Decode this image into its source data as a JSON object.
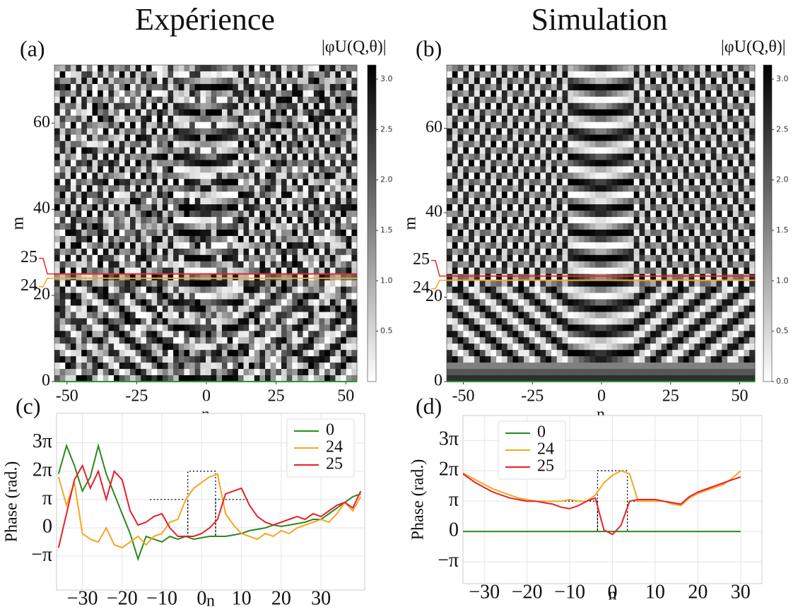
{
  "chart_data": [
    {
      "type": "heatmap",
      "title": "Expérience",
      "panel": "(a)",
      "xlabel": "n",
      "ylabel": "m",
      "colorbar_label": "|φU(Q,θ)|",
      "xlim": [
        -54.5,
        54
      ],
      "xticks": [
        -50,
        -25,
        0,
        25,
        50
      ],
      "ylim": [
        0,
        73.5
      ],
      "yticks": [
        0,
        20,
        40,
        60
      ],
      "clim": [
        0,
        3.14
      ],
      "cticks": [
        {
          "value": 0.5,
          "label": "0.5"
        },
        {
          "value": 1,
          "label": "1.0"
        },
        {
          "value": 1.5,
          "label": "1.5"
        },
        {
          "value": 2,
          "label": "2.0"
        },
        {
          "value": 2.5,
          "label": "2.5"
        },
        {
          "value": 3,
          "label": "3.0"
        }
      ],
      "cmap": [
        "#ffffff",
        "#000000"
      ],
      "noisy": true,
      "cuts": [
        {
          "value": 25,
          "color": "#e8282a"
        },
        {
          "value": 24,
          "color": "#f5a623"
        },
        {
          "value": 0,
          "color": "#2a9a2a"
        }
      ]
    },
    {
      "type": "heatmap",
      "title": "Simulation",
      "panel": "(b)",
      "xlabel": "n",
      "ylabel": "m",
      "colorbar_label": "|φU(Q,θ)|",
      "xlim": [
        -56,
        55.5
      ],
      "xticks": [
        -50,
        -25,
        0,
        25,
        50
      ],
      "ylim": [
        0,
        75
      ],
      "yticks": [
        0,
        20,
        40,
        60
      ],
      "clim": [
        0,
        3.14
      ],
      "cticks": [
        {
          "value": 0,
          "label": "0.0"
        },
        {
          "value": 0.5,
          "label": "0.5"
        },
        {
          "value": 1,
          "label": "1.0"
        },
        {
          "value": 1.5,
          "label": "1.5"
        },
        {
          "value": 2,
          "label": "2.0"
        },
        {
          "value": 2.5,
          "label": "2.5"
        },
        {
          "value": 3,
          "label": "3.0"
        }
      ],
      "cmap": [
        "#ffffff",
        "#000000"
      ],
      "noisy": false,
      "cuts": [
        {
          "value": 25,
          "color": "#e8282a"
        },
        {
          "value": 24,
          "color": "#f5a623"
        },
        {
          "value": 0,
          "color": "#2a9a2a"
        }
      ]
    },
    {
      "type": "line",
      "panel": "(c)",
      "xlabel": "n",
      "ylabel": "Phase (rad.)",
      "legend": "upper right",
      "grid": true,
      "xlim": [
        -36.5,
        41
      ],
      "xticks": [
        {
          "value": -30,
          "label": "−30"
        },
        {
          "value": -20,
          "label": "−20"
        },
        {
          "value": -10,
          "label": "−10"
        },
        0,
        10,
        20,
        30
      ],
      "ylim": [
        -6.9,
        12.7
      ],
      "yticks": [
        {
          "value": -3.1416,
          "label": "−π"
        },
        0,
        {
          "value": 3.1416,
          "label": "π"
        },
        {
          "value": 6.2832,
          "label": "2π"
        },
        {
          "value": 9.4248,
          "label": "3π"
        }
      ],
      "x": [
        -36,
        -34,
        -32,
        -30,
        -28,
        -26,
        -24,
        -22,
        -20,
        -18,
        -16,
        -14,
        -12,
        -10,
        -8,
        -6,
        -4,
        -2,
        0,
        2,
        4,
        6,
        8,
        10,
        12,
        14,
        16,
        18,
        20,
        22,
        24,
        26,
        28,
        30,
        32,
        34,
        36,
        38,
        40
      ],
      "series": [
        {
          "name": "0",
          "color": "#2a8a1e",
          "values": [
            5.97,
            9.11,
            6.91,
            4.08,
            5.65,
            9.11,
            5.97,
            3.77,
            1.57,
            -0.63,
            -3.46,
            -0.94,
            -1.26,
            -1.57,
            -0.94,
            -1.26,
            -0.94,
            -1.26,
            -1.1,
            -0.94,
            -0.94,
            -0.94,
            -0.79,
            -0.63,
            -0.31,
            -0.16,
            0,
            0.31,
            0.16,
            0.31,
            0.47,
            0.63,
            0.94,
            0.94,
            1.57,
            2.2,
            2.83,
            3.46,
            3.77
          ]
        },
        {
          "name": "24",
          "color": "#f5a623",
          "values": [
            5.65,
            2.51,
            5.03,
            -0.63,
            -1.26,
            -1.57,
            0,
            -1.88,
            -2.2,
            -1.57,
            -0.94,
            -1.88,
            -0.94,
            -0.63,
            0.63,
            0.94,
            3.14,
            4.4,
            5.03,
            5.65,
            5.97,
            1.57,
            0.31,
            -0.63,
            -0.94,
            -1.26,
            -0.63,
            -0.94,
            -0.31,
            -0.63,
            0,
            0.31,
            0.63,
            0.94,
            0.63,
            1.57,
            2.83,
            1.88,
            3.46
          ]
        },
        {
          "name": "25",
          "color": "#e8202a",
          "values": [
            -2.2,
            1.57,
            5.34,
            6.91,
            4.4,
            6.28,
            3.14,
            6.28,
            5.34,
            1.88,
            0.31,
            0.63,
            1.26,
            1.57,
            0,
            -0.94,
            -0.94,
            -0.94,
            -0.63,
            0,
            0.94,
            3.77,
            4.08,
            4.4,
            2.51,
            1.26,
            0.63,
            0.31,
            0.63,
            0.94,
            1.26,
            0.94,
            1.57,
            1.26,
            1.88,
            2.51,
            2.83,
            2.2,
            4.08
          ]
        }
      ],
      "reference": {
        "color": "#000000",
        "x": [
          -13,
          -3.5,
          -3.5,
          -3.5,
          3.5,
          3.5,
          3.5,
          12
        ],
        "values": [
          3.14,
          3.14,
          -0.94,
          6.28,
          6.28,
          -0.94,
          3.14,
          3.14
        ]
      }
    },
    {
      "type": "line",
      "panel": "(d)",
      "xlabel": "n",
      "ylabel": "Phase (rad.)",
      "legend": "upper left",
      "grid": true,
      "xlim": [
        -35,
        35
      ],
      "xticks": [
        {
          "value": -30,
          "label": "−30"
        },
        {
          "value": -20,
          "label": "−20"
        },
        {
          "value": -10,
          "label": "−10"
        },
        0,
        10,
        20,
        30
      ],
      "ylim": [
        -5.4,
        12.0
      ],
      "yticks": [
        {
          "value": -3.1416,
          "label": "−π"
        },
        0,
        {
          "value": 3.1416,
          "label": "π"
        },
        {
          "value": 6.2832,
          "label": "2π"
        },
        {
          "value": 9.4248,
          "label": "3π"
        }
      ],
      "x": [
        -36,
        -34,
        -32,
        -30,
        -28,
        -26,
        -24,
        -22,
        -20,
        -18,
        -16,
        -14,
        -12,
        -10,
        -8,
        -6,
        -4,
        -2,
        0,
        2,
        4,
        6,
        8,
        10,
        12,
        14,
        16,
        18,
        20,
        22,
        24,
        26,
        28,
        30
      ],
      "series": [
        {
          "name": "0",
          "color": "#2a8a1e",
          "values": [
            0,
            0,
            0,
            0,
            0,
            0,
            0,
            0,
            0,
            0,
            0,
            0,
            0,
            0,
            0,
            0,
            0,
            0,
            0,
            0,
            0,
            0,
            0,
            0,
            0,
            0,
            0,
            0,
            0,
            0,
            0,
            0,
            0,
            0
          ]
        },
        {
          "name": "24",
          "color": "#f5a623",
          "values": [
            6.28,
            5.81,
            5.34,
            4.87,
            4.4,
            4.08,
            3.77,
            3.46,
            3.3,
            3.14,
            3.14,
            3.14,
            3.14,
            3.3,
            3.14,
            3.14,
            3.77,
            5.03,
            5.81,
            6.28,
            5.97,
            3.14,
            3.14,
            3.14,
            3.14,
            2.83,
            2.67,
            3.46,
            3.93,
            4.24,
            4.55,
            4.87,
            5.5,
            6.28
          ]
        },
        {
          "name": "25",
          "color": "#e8202a",
          "values": [
            6.28,
            5.65,
            5.03,
            4.55,
            4.08,
            3.77,
            3.46,
            3.3,
            3.14,
            3.14,
            2.98,
            2.83,
            2.51,
            2.36,
            2.67,
            3.14,
            3.46,
            0.16,
            -0.31,
            0.63,
            3.14,
            3.3,
            3.3,
            3.3,
            3.14,
            2.98,
            2.83,
            3.61,
            4.08,
            4.4,
            4.71,
            5.03,
            5.34,
            5.65
          ]
        }
      ],
      "reference": {
        "color": "#000000",
        "x": [
          -12,
          -3.5,
          -3.5,
          -3.5,
          3.5,
          3.5,
          3.5,
          12
        ],
        "values": [
          3.14,
          3.14,
          0,
          6.28,
          6.28,
          0,
          3.14,
          3.14
        ]
      }
    }
  ]
}
